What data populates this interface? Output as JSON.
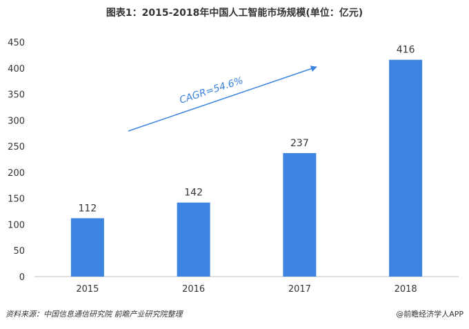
{
  "title": "图表1：2015-2018年中国人工智能市场规模(单位：亿元)",
  "source": "资料来源：中国信息通信研究院 前瞻产业研究院整理",
  "brand": "@前瞻经济学人APP",
  "chart_data": {
    "type": "bar",
    "categories": [
      "2015",
      "2016",
      "2017",
      "2018"
    ],
    "values": [
      112,
      142,
      237,
      416
    ],
    "xlabel": "",
    "ylabel": "",
    "ylim": [
      0,
      450
    ],
    "yticks": [
      0,
      50,
      100,
      150,
      200,
      250,
      300,
      350,
      400,
      450
    ],
    "bar_color": "#3d85e0",
    "annotation": "CAGR=54.6%",
    "grid": false,
    "legend": "none"
  }
}
